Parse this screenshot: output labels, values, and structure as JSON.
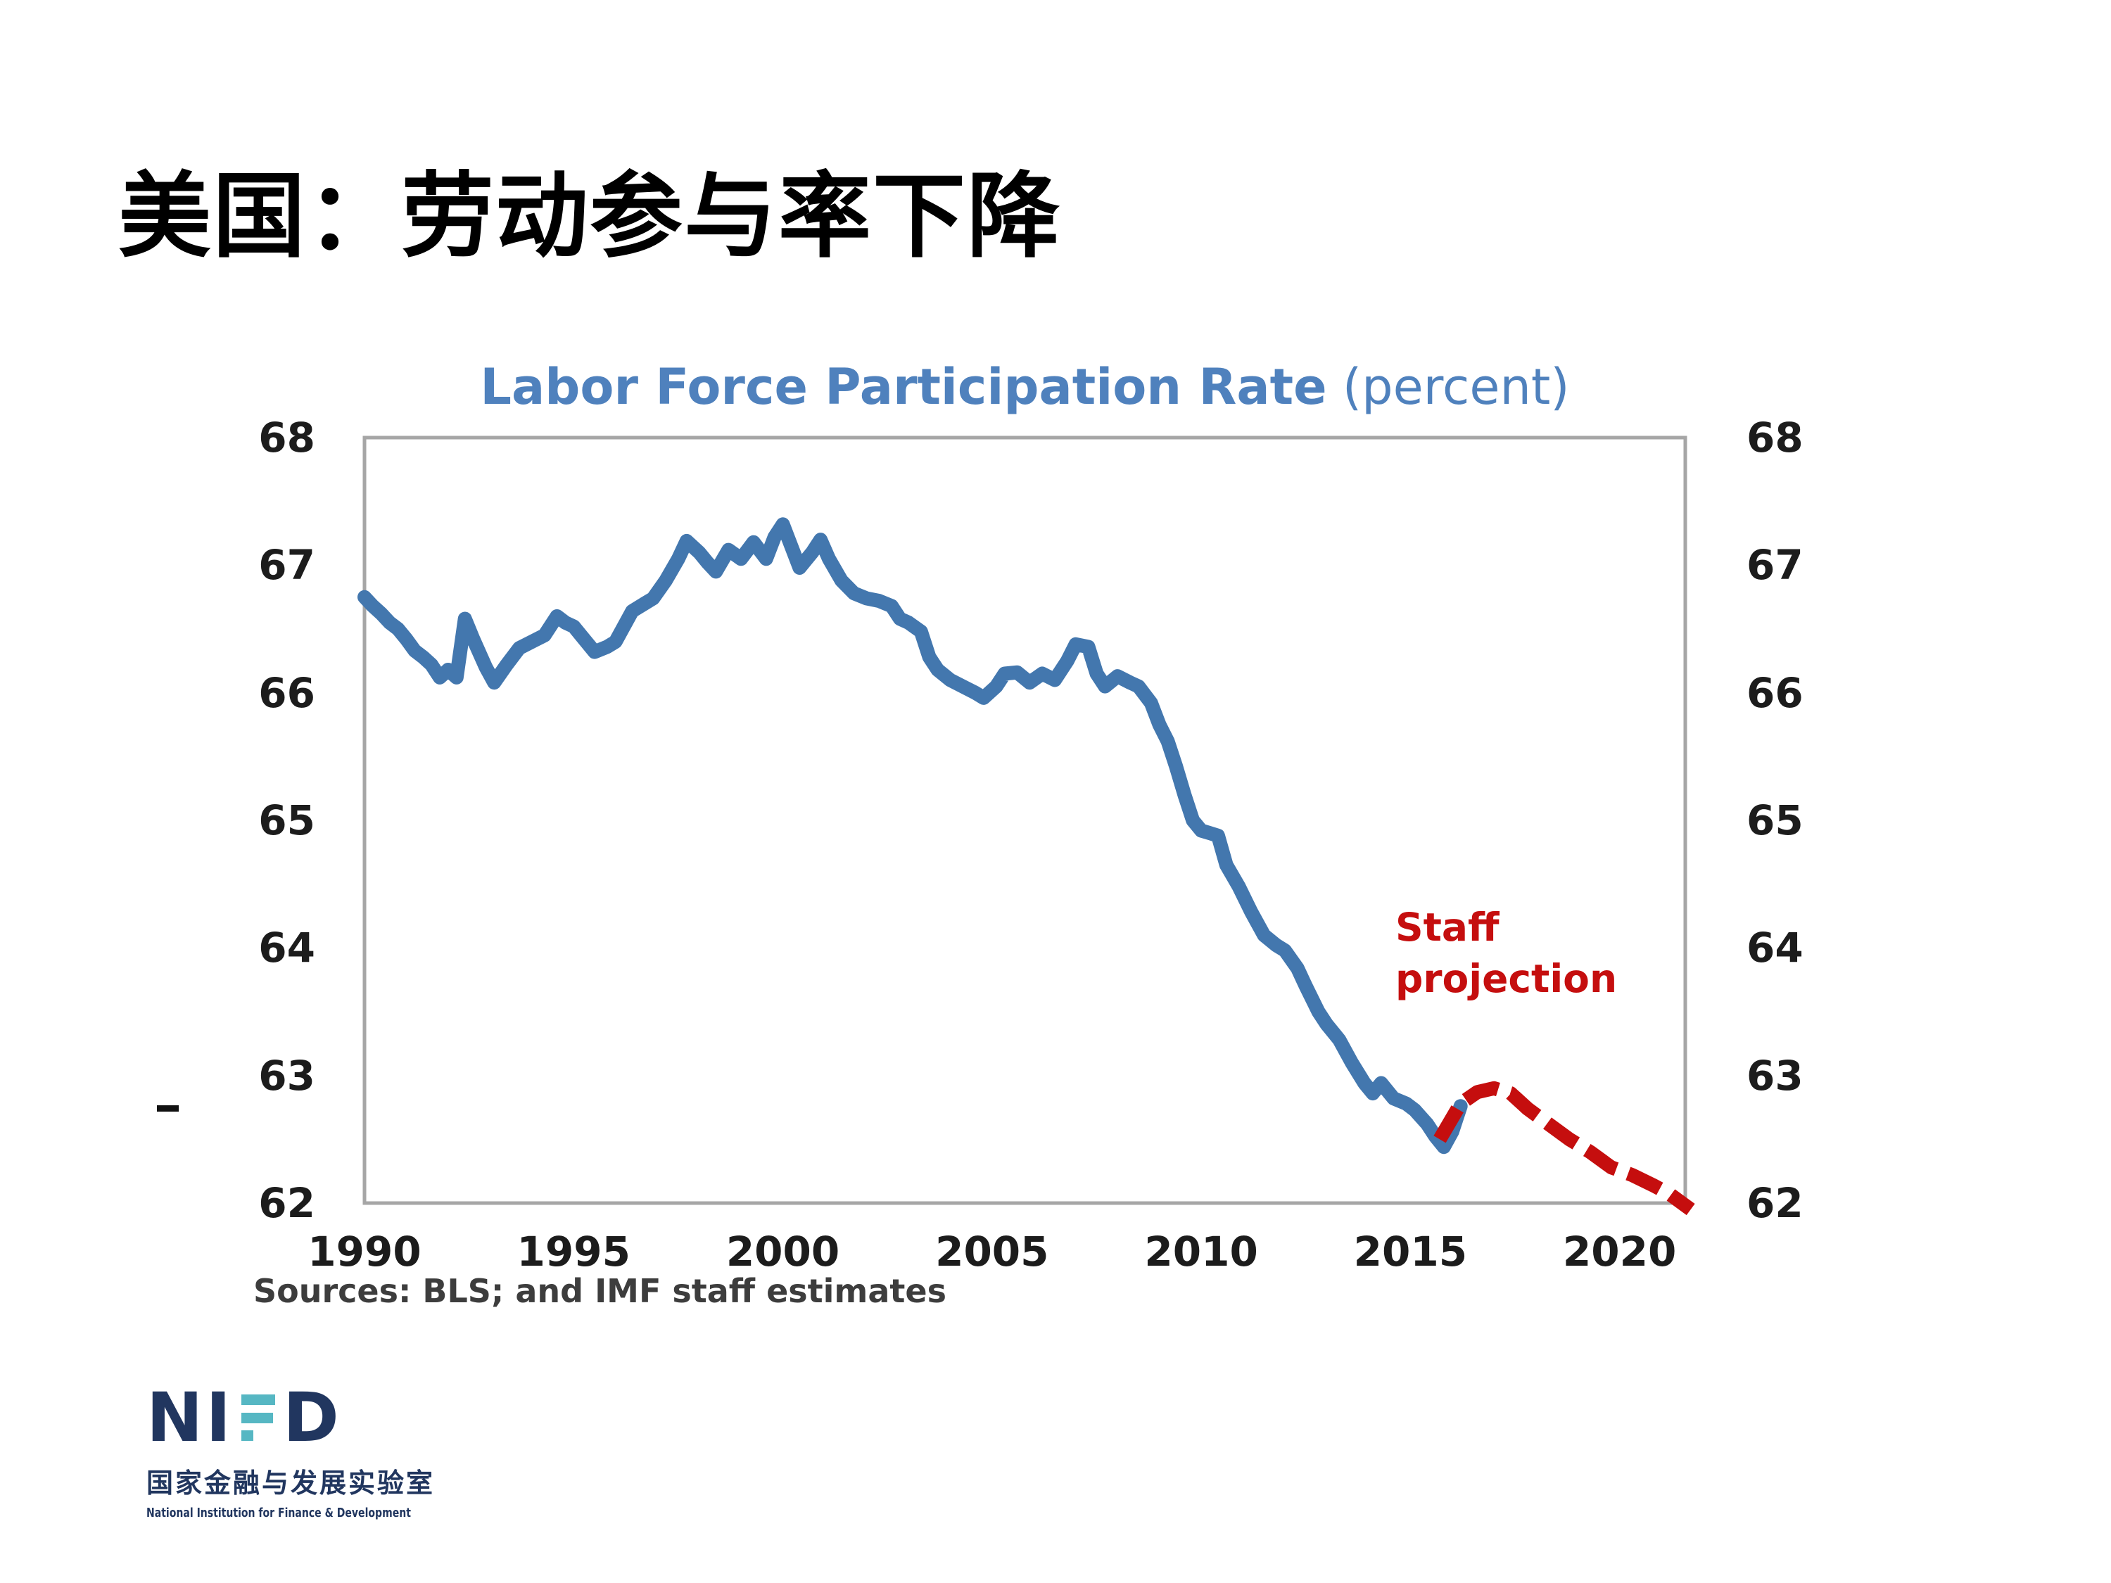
{
  "slide": {
    "title": "美国：劳动参与率下降"
  },
  "chart": {
    "title": {
      "main": "Labor Force Participation Rate",
      "suffix": " (percent)"
    },
    "y_axis": {
      "ticks": [
        68,
        67,
        66,
        65,
        64,
        63,
        62
      ]
    },
    "x_axis": {
      "ticks": [
        "1990",
        "1995",
        "2000",
        "2005",
        "2010",
        "2015",
        "2020"
      ]
    },
    "annotation": {
      "line1": "Staff",
      "line2": "projection"
    },
    "source_note": "Sources: BLS; and IMF staff estimates",
    "colors": {
      "actual_line": "#4377ae",
      "projection_line": "#c50e0e",
      "plot_border": "#a6a6a6",
      "title_text": "#4f81bd",
      "axis_text": "#1c1c1c",
      "source_text": "#3d3d3d"
    }
  },
  "chart_data": {
    "type": "line",
    "title": "Labor Force Participation Rate (percent)",
    "xlabel": "",
    "ylabel": "percent",
    "x_range": [
      1990,
      2021.7
    ],
    "ylim": [
      62,
      68
    ],
    "x_ticks": [
      1990,
      1995,
      2000,
      2005,
      2010,
      2015,
      2020
    ],
    "y_ticks": [
      62,
      63,
      64,
      65,
      66,
      67,
      68
    ],
    "grid": false,
    "legend_position": "none",
    "series": [
      {
        "name": "Labor force participation rate (historical)",
        "style": "solid",
        "color": "#4377ae",
        "points": [
          [
            1990.0,
            66.75
          ],
          [
            1990.2,
            66.68
          ],
          [
            1990.4,
            66.62
          ],
          [
            1990.6,
            66.55
          ],
          [
            1990.8,
            66.5
          ],
          [
            1991.0,
            66.42
          ],
          [
            1991.2,
            66.33
          ],
          [
            1991.4,
            66.28
          ],
          [
            1991.6,
            66.22
          ],
          [
            1991.8,
            66.12
          ],
          [
            1992.0,
            66.18
          ],
          [
            1992.2,
            66.12
          ],
          [
            1992.4,
            66.58
          ],
          [
            1992.6,
            66.42
          ],
          [
            1992.9,
            66.2
          ],
          [
            1993.1,
            66.08
          ],
          [
            1993.4,
            66.22
          ],
          [
            1993.7,
            66.35
          ],
          [
            1994.0,
            66.4
          ],
          [
            1994.3,
            66.45
          ],
          [
            1994.6,
            66.6
          ],
          [
            1994.8,
            66.55
          ],
          [
            1995.0,
            66.52
          ],
          [
            1995.3,
            66.4
          ],
          [
            1995.5,
            66.32
          ],
          [
            1995.8,
            66.36
          ],
          [
            1996.0,
            66.4
          ],
          [
            1996.4,
            66.64
          ],
          [
            1996.7,
            66.7
          ],
          [
            1996.9,
            66.74
          ],
          [
            1997.2,
            66.88
          ],
          [
            1997.5,
            67.05
          ],
          [
            1997.7,
            67.19
          ],
          [
            1998.0,
            67.1
          ],
          [
            1998.2,
            67.02
          ],
          [
            1998.4,
            66.95
          ],
          [
            1998.7,
            67.12
          ],
          [
            1999.0,
            67.05
          ],
          [
            1999.3,
            67.18
          ],
          [
            1999.6,
            67.05
          ],
          [
            1999.8,
            67.22
          ],
          [
            2000.0,
            67.32
          ],
          [
            2000.2,
            67.15
          ],
          [
            2000.4,
            66.98
          ],
          [
            2000.7,
            67.1
          ],
          [
            2000.9,
            67.2
          ],
          [
            2001.1,
            67.05
          ],
          [
            2001.4,
            66.88
          ],
          [
            2001.7,
            66.78
          ],
          [
            2002.0,
            66.74
          ],
          [
            2002.3,
            66.72
          ],
          [
            2002.6,
            66.68
          ],
          [
            2002.8,
            66.58
          ],
          [
            2003.0,
            66.55
          ],
          [
            2003.3,
            66.48
          ],
          [
            2003.5,
            66.28
          ],
          [
            2003.7,
            66.18
          ],
          [
            2004.0,
            66.1
          ],
          [
            2004.3,
            66.05
          ],
          [
            2004.6,
            66.0
          ],
          [
            2004.8,
            65.96
          ],
          [
            2005.1,
            66.05
          ],
          [
            2005.3,
            66.15
          ],
          [
            2005.6,
            66.16
          ],
          [
            2005.9,
            66.08
          ],
          [
            2006.2,
            66.15
          ],
          [
            2006.5,
            66.1
          ],
          [
            2006.8,
            66.25
          ],
          [
            2007.0,
            66.38
          ],
          [
            2007.3,
            66.36
          ],
          [
            2007.5,
            66.15
          ],
          [
            2007.7,
            66.05
          ],
          [
            2008.0,
            66.13
          ],
          [
            2008.3,
            66.08
          ],
          [
            2008.5,
            66.05
          ],
          [
            2008.8,
            65.92
          ],
          [
            2009.0,
            65.75
          ],
          [
            2009.2,
            65.62
          ],
          [
            2009.4,
            65.42
          ],
          [
            2009.6,
            65.2
          ],
          [
            2009.8,
            65.0
          ],
          [
            2010.0,
            64.92
          ],
          [
            2010.2,
            64.9
          ],
          [
            2010.4,
            64.88
          ],
          [
            2010.6,
            64.65
          ],
          [
            2010.9,
            64.48
          ],
          [
            2011.2,
            64.28
          ],
          [
            2011.5,
            64.1
          ],
          [
            2011.8,
            64.02
          ],
          [
            2012.0,
            63.98
          ],
          [
            2012.3,
            63.84
          ],
          [
            2012.5,
            63.7
          ],
          [
            2012.8,
            63.5
          ],
          [
            2013.0,
            63.4
          ],
          [
            2013.3,
            63.28
          ],
          [
            2013.6,
            63.1
          ],
          [
            2013.9,
            62.94
          ],
          [
            2014.1,
            62.86
          ],
          [
            2014.3,
            62.94
          ],
          [
            2014.6,
            62.82
          ],
          [
            2014.9,
            62.78
          ],
          [
            2015.1,
            62.73
          ],
          [
            2015.4,
            62.62
          ],
          [
            2015.6,
            62.52
          ],
          [
            2015.8,
            62.44
          ],
          [
            2016.0,
            62.56
          ],
          [
            2016.2,
            62.76
          ]
        ]
      },
      {
        "name": "Staff projection",
        "style": "dashed",
        "color": "#c50e0e",
        "points": [
          [
            2015.7,
            62.5
          ],
          [
            2016.2,
            62.78
          ],
          [
            2016.6,
            62.87
          ],
          [
            2017.0,
            62.9
          ],
          [
            2017.4,
            62.86
          ],
          [
            2017.8,
            62.74
          ],
          [
            2018.3,
            62.62
          ],
          [
            2018.8,
            62.5
          ],
          [
            2019.3,
            62.4
          ],
          [
            2019.8,
            62.28
          ],
          [
            2020.3,
            62.22
          ],
          [
            2020.8,
            62.14
          ],
          [
            2021.2,
            62.07
          ],
          [
            2021.7,
            61.95
          ]
        ]
      }
    ]
  },
  "logo": {
    "letters_before": "NI",
    "letter_after": "D",
    "cn_name": "国家金融与发展实验室",
    "en_name": "National Institution for Finance & Development",
    "navy": "#21365f",
    "teal": "#56b7c3"
  }
}
